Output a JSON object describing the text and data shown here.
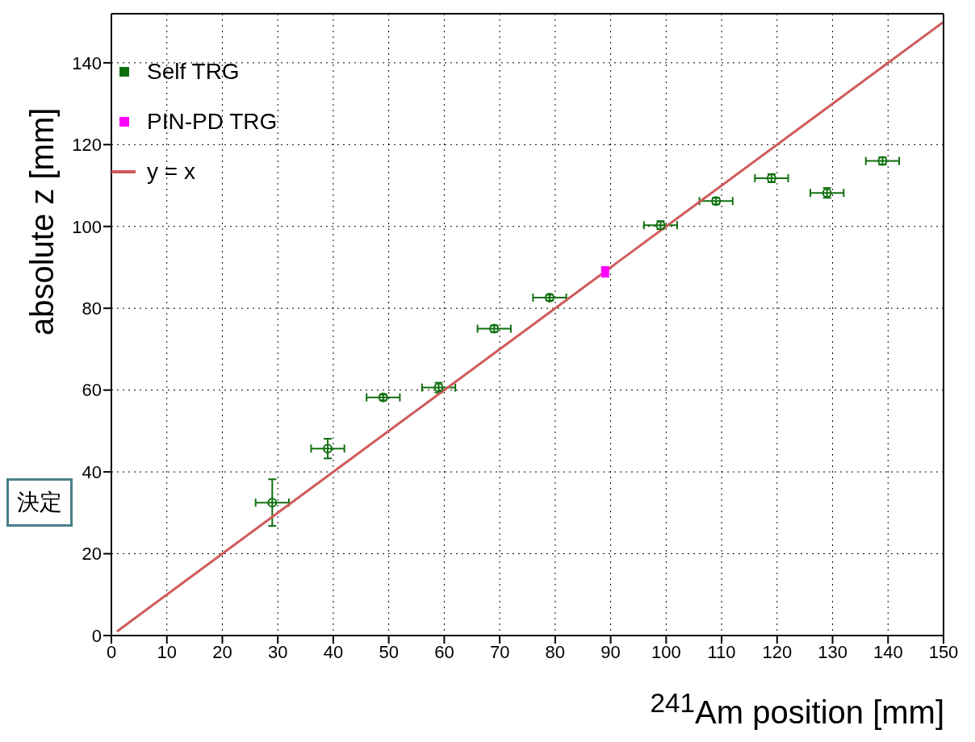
{
  "chart_data": {
    "type": "scatter",
    "xlabel": "$^{241}$Am position [mm]",
    "ylabel": "absolute z [mm]",
    "xlim": [
      0,
      150
    ],
    "xticks": [
      0,
      10,
      20,
      30,
      40,
      50,
      60,
      70,
      80,
      90,
      100,
      110,
      120,
      130,
      140,
      150
    ],
    "ylim": [
      0,
      152
    ],
    "yticks": [
      0,
      20,
      40,
      60,
      80,
      100,
      120,
      140
    ],
    "grid": true,
    "legend": "top left",
    "annotations": [
      "決定"
    ],
    "series": [
      {
        "name": "Self TRG",
        "color": "#107010",
        "marker": "circle",
        "x": [
          29,
          39,
          49,
          59,
          69,
          79,
          99,
          109,
          119,
          129,
          139
        ],
        "values": [
          32.5,
          45.7,
          58.2,
          60.6,
          75.0,
          82.6,
          100.3,
          106.2,
          111.8,
          108.2,
          116.0
        ],
        "errors": [
          5.7,
          2.4,
          0.7,
          1.2,
          0.8,
          0.7,
          1.0,
          0.8,
          1.0,
          1.2,
          0.9
        ],
        "xerrors": [
          3,
          3,
          3,
          3,
          3,
          3,
          3,
          3,
          3,
          3,
          3
        ]
      },
      {
        "name": "PIN-PD TRG",
        "color": "#ff00ff",
        "marker": "square",
        "x": [
          89
        ],
        "values": [
          88.9
        ],
        "errors": [
          1.2
        ],
        "xerrors": [
          0.5
        ]
      },
      {
        "name": "y = x",
        "type": "line",
        "color": "#d05a5a",
        "marker": "none",
        "line_style": "solid",
        "x": [
          1,
          150
        ],
        "values": [
          1,
          150
        ]
      }
    ]
  }
}
